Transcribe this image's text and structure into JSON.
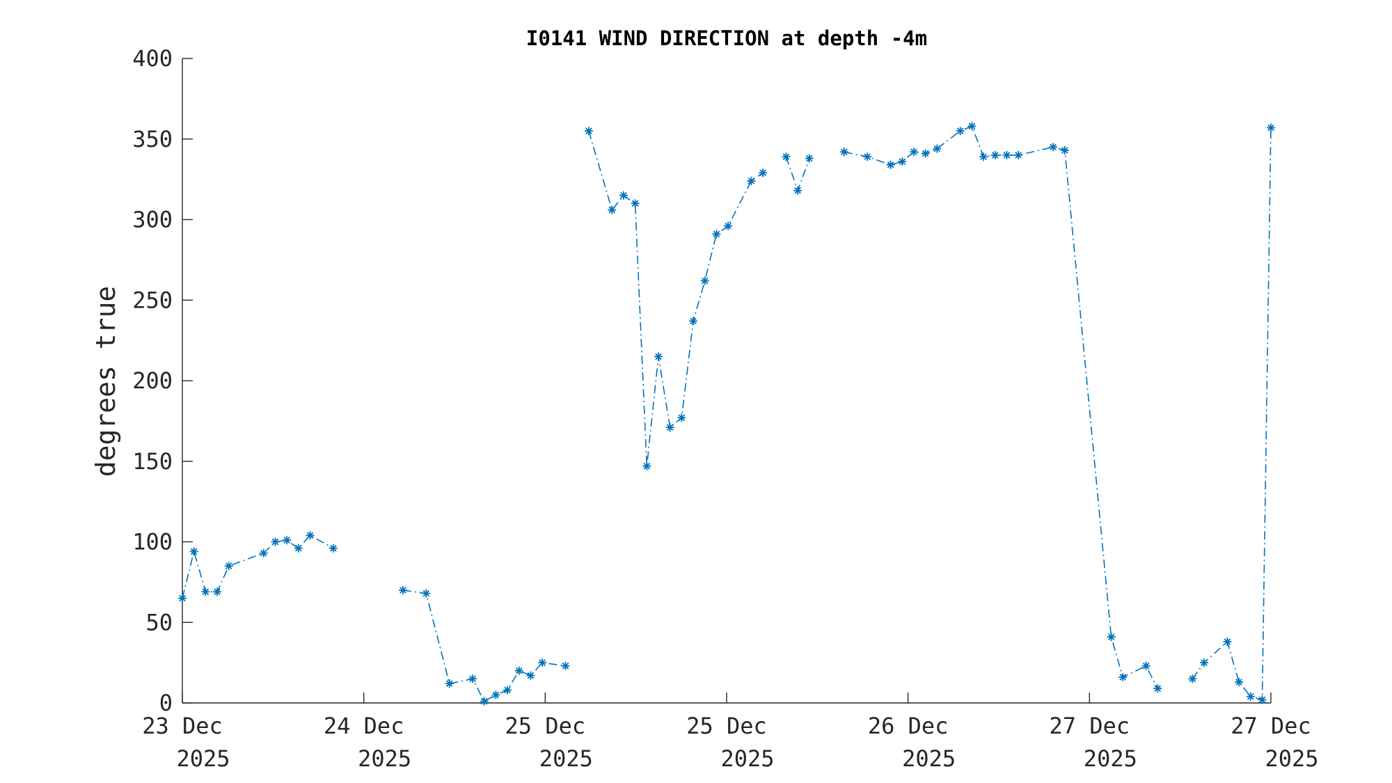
{
  "chart_data": {
    "type": "line",
    "title": "I0141 WIND DIRECTION at depth -4m",
    "xlabel": "",
    "ylabel": "degrees true",
    "xlim": [
      0,
      6
    ],
    "ylim": [
      0,
      400
    ],
    "grid": false,
    "color": "#0072BD",
    "marker": "asterisk",
    "line_style": "dash-dot",
    "y_ticks": [
      "0",
      "50",
      "100",
      "150",
      "200",
      "250",
      "300",
      "350",
      "400"
    ],
    "y_tick_values": [
      0,
      50,
      100,
      150,
      200,
      250,
      300,
      350,
      400
    ],
    "x_ticks": [
      {
        "value": 0,
        "line1": "23 Dec",
        "line2": "2025"
      },
      {
        "value": 1,
        "line1": "24 Dec",
        "line2": "2025"
      },
      {
        "value": 2,
        "line1": "25 Dec",
        "line2": "2025"
      },
      {
        "value": 3,
        "line1": "25 Dec",
        "line2": "2025"
      },
      {
        "value": 4,
        "line1": "26 Dec",
        "line2": "2025"
      },
      {
        "value": 5,
        "line1": "27 Dec",
        "line2": "2025"
      },
      {
        "value": 6,
        "line1": "27 Dec",
        "line2": "2025"
      }
    ],
    "series": [
      {
        "segments": [
          [
            [
              0.0,
              65
            ],
            [
              0.064,
              94
            ],
            [
              0.128,
              69
            ],
            [
              0.192,
              69
            ],
            [
              0.256,
              85
            ],
            [
              0.448,
              93
            ],
            [
              0.512,
              100
            ],
            [
              0.576,
              101
            ],
            [
              0.64,
              96
            ],
            [
              0.704,
              104
            ],
            [
              0.832,
              96
            ]
          ],
          [
            [
              1.216,
              70
            ],
            [
              1.344,
              68
            ],
            [
              1.472,
              12
            ],
            [
              1.6,
              15
            ],
            [
              1.664,
              1
            ],
            [
              1.728,
              5
            ],
            [
              1.792,
              8
            ],
            [
              1.856,
              20
            ],
            [
              1.92,
              17
            ],
            [
              1.984,
              25
            ],
            [
              2.112,
              23
            ]
          ],
          [
            [
              2.24,
              355
            ],
            [
              2.368,
              306
            ],
            [
              2.432,
              315
            ],
            [
              2.496,
              310
            ],
            [
              2.56,
              147
            ],
            [
              2.624,
              215
            ],
            [
              2.688,
              171
            ],
            [
              2.752,
              177
            ],
            [
              2.816,
              237
            ],
            [
              2.88,
              262
            ],
            [
              2.944,
              291
            ],
            [
              3.008,
              296
            ],
            [
              3.136,
              324
            ],
            [
              3.2,
              329
            ]
          ],
          [
            [
              3.328,
              339
            ],
            [
              3.392,
              318
            ],
            [
              3.456,
              338
            ]
          ],
          [
            [
              3.648,
              342
            ],
            [
              3.776,
              339
            ],
            [
              3.904,
              334
            ],
            [
              3.968,
              336
            ],
            [
              4.032,
              342
            ],
            [
              4.096,
              341
            ],
            [
              4.16,
              344
            ],
            [
              4.288,
              355
            ],
            [
              4.352,
              358
            ],
            [
              4.416,
              339
            ],
            [
              4.48,
              340
            ],
            [
              4.544,
              340
            ],
            [
              4.608,
              340
            ],
            [
              4.8,
              345
            ],
            [
              4.864,
              343
            ],
            [
              5.12,
              41
            ],
            [
              5.184,
              16
            ],
            [
              5.312,
              23
            ],
            [
              5.376,
              9
            ]
          ],
          [
            [
              5.568,
              15
            ],
            [
              5.632,
              25
            ],
            [
              5.76,
              38
            ],
            [
              5.824,
              13
            ],
            [
              5.888,
              4
            ],
            [
              5.952,
              2
            ],
            [
              6.0,
              357
            ]
          ]
        ]
      }
    ]
  }
}
